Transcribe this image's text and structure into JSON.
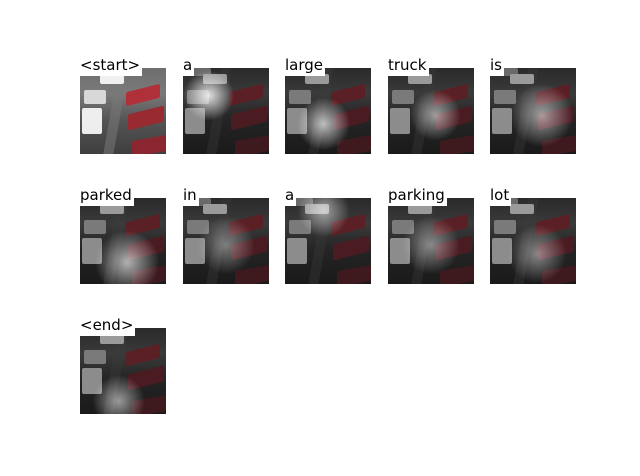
{
  "chart_data": {
    "type": "attention-grid",
    "tokens": [
      {
        "word": "<start>",
        "attention": {
          "cx": 0.5,
          "cy": 0.5,
          "r": 0.0,
          "a": 0.0
        }
      },
      {
        "word": "a",
        "attention": {
          "cx": 0.3,
          "cy": 0.32,
          "r": 0.3,
          "a": 0.85
        }
      },
      {
        "word": "large",
        "attention": {
          "cx": 0.45,
          "cy": 0.65,
          "r": 0.36,
          "a": 0.7
        }
      },
      {
        "word": "truck",
        "attention": {
          "cx": 0.55,
          "cy": 0.55,
          "r": 0.38,
          "a": 0.55
        }
      },
      {
        "word": "is",
        "attention": {
          "cx": 0.6,
          "cy": 0.55,
          "r": 0.45,
          "a": 0.55
        }
      },
      {
        "word": "parked",
        "attention": {
          "cx": 0.55,
          "cy": 0.75,
          "r": 0.4,
          "a": 0.65
        }
      },
      {
        "word": "in",
        "attention": {
          "cx": 0.5,
          "cy": 0.55,
          "r": 0.45,
          "a": 0.4
        }
      },
      {
        "word": "a",
        "attention": {
          "cx": 0.45,
          "cy": 0.15,
          "r": 0.3,
          "a": 0.55
        }
      },
      {
        "word": "parking",
        "attention": {
          "cx": 0.5,
          "cy": 0.55,
          "r": 0.45,
          "a": 0.45
        }
      },
      {
        "word": "lot",
        "attention": {
          "cx": 0.55,
          "cy": 0.65,
          "r": 0.4,
          "a": 0.45
        }
      },
      {
        "word": "<end>",
        "attention": {
          "cx": 0.45,
          "cy": 0.85,
          "r": 0.3,
          "a": 0.55
        }
      }
    ]
  }
}
